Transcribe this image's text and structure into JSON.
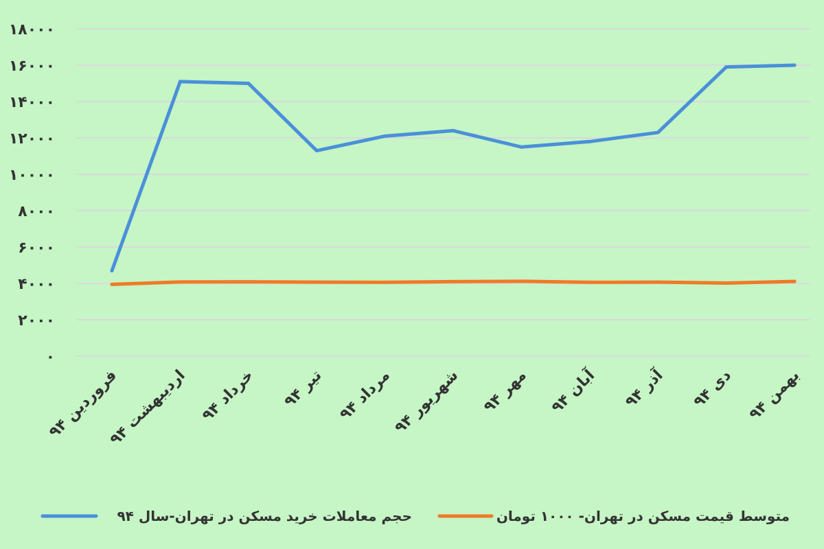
{
  "chart_data": {
    "type": "line",
    "title": "",
    "xlabel": "",
    "ylabel": "",
    "ylim": [
      0,
      18000
    ],
    "yticks": [
      0,
      2000,
      4000,
      6000,
      8000,
      10000,
      12000,
      14000,
      16000,
      18000
    ],
    "ytick_labels": [
      "۰",
      "۲۰۰۰",
      "۴۰۰۰",
      "۶۰۰۰",
      "۸۰۰۰",
      "۱۰۰۰۰",
      "۱۲۰۰۰",
      "۱۴۰۰۰",
      "۱۶۰۰۰",
      "۱۸۰۰۰"
    ],
    "grid": true,
    "legend_position": "bottom",
    "categories": [
      "فروردین ۹۴",
      "اردیبهشت ۹۴",
      "خرداد ۹۴",
      "تیر ۹۴",
      "مرداد ۹۴",
      "شهریور ۹۴",
      "مهر ۹۴",
      "آبان ۹۴",
      "آذر ۹۴",
      "دی ۹۴",
      "بهمن ۹۴"
    ],
    "series": [
      {
        "name": "حجم معاملات خرید مسکن در تهران-سال ۹۴",
        "color": "#4a90d9",
        "values": [
          4700,
          15100,
          15000,
          11300,
          12100,
          12400,
          11500,
          11800,
          12300,
          15900,
          16000
        ]
      },
      {
        "name": "متوسط قیمت مسکن در تهران- ۱۰۰۰ تومان",
        "color": "#f07a26",
        "values": [
          3950,
          4080,
          4090,
          4070,
          4060,
          4100,
          4120,
          4060,
          4070,
          4020,
          4110
        ]
      }
    ]
  }
}
